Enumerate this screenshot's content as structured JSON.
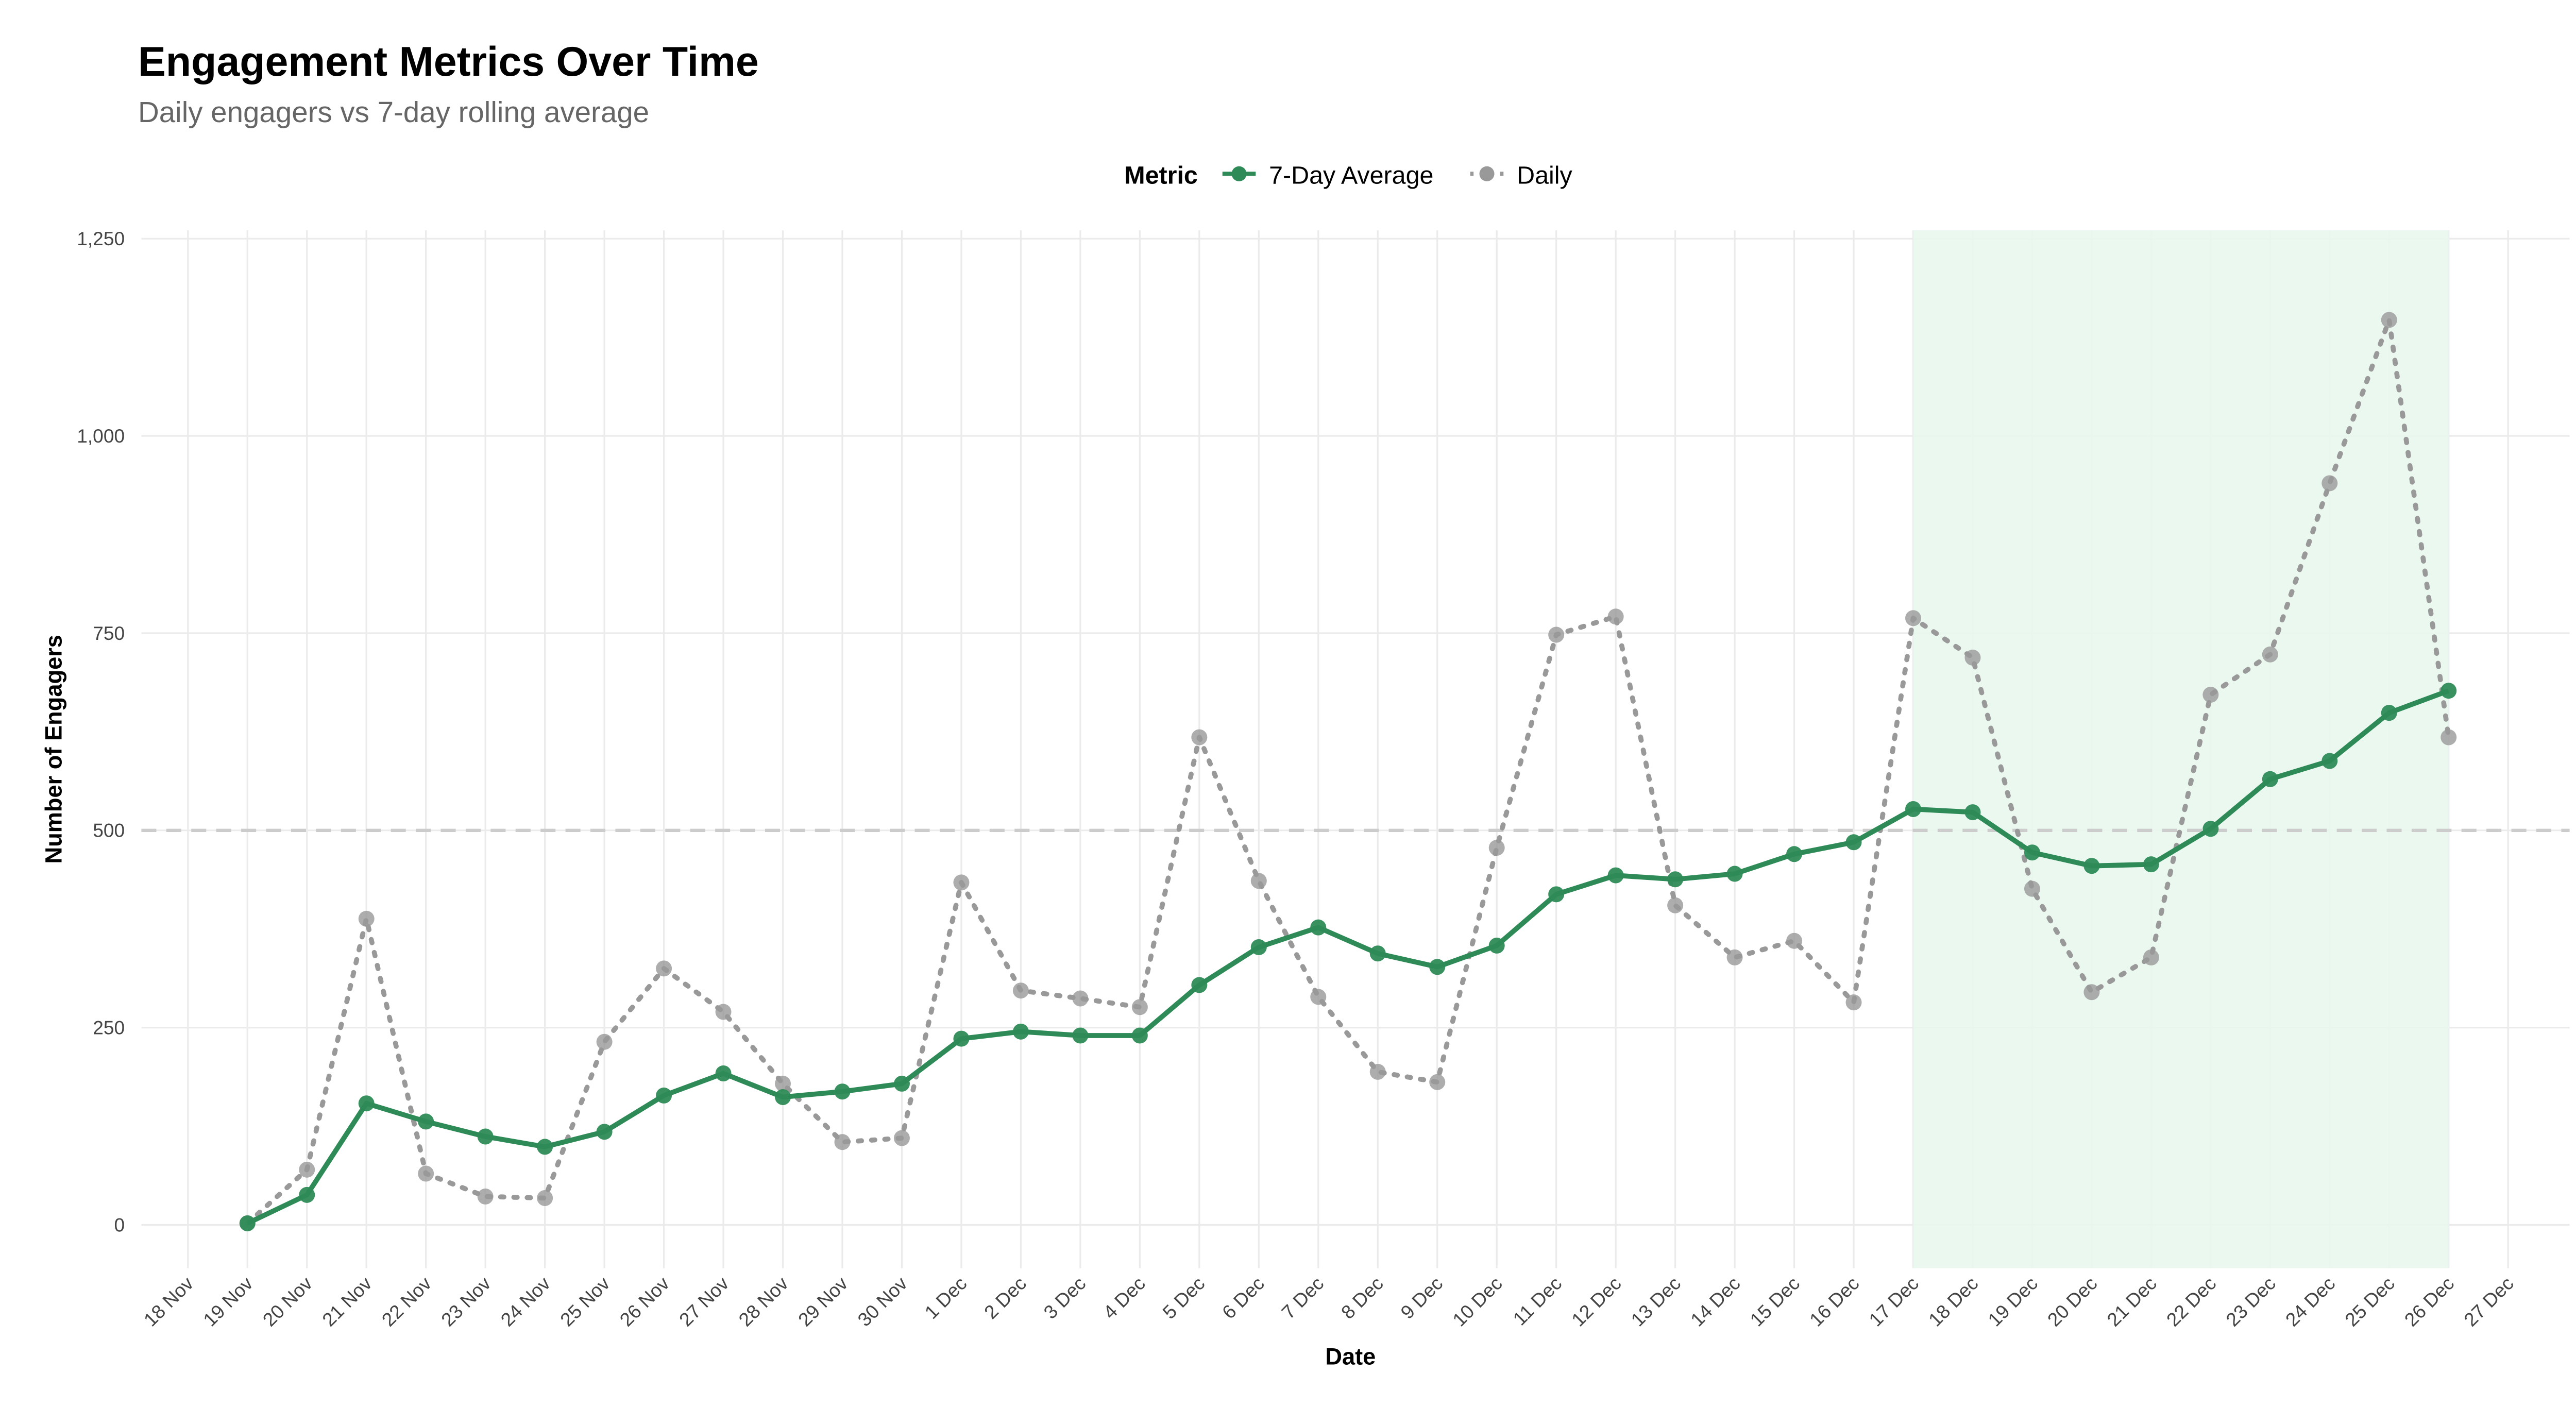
{
  "chart_data": {
    "type": "line",
    "title": "Engagement Metrics Over Time",
    "subtitle": "Daily engagers vs 7-day rolling average",
    "xlabel": "Date",
    "ylabel": "Number of Engagers",
    "legend": {
      "title": "Metric",
      "placement": "top",
      "entries": [
        "7-Day Average",
        "Daily"
      ]
    },
    "x_ticks": [
      "18 Nov",
      "19 Nov",
      "20 Nov",
      "21 Nov",
      "22 Nov",
      "23 Nov",
      "24 Nov",
      "25 Nov",
      "26 Nov",
      "27 Nov",
      "28 Nov",
      "29 Nov",
      "30 Nov",
      "1 Dec",
      "2 Dec",
      "3 Dec",
      "4 Dec",
      "5 Dec",
      "6 Dec",
      "7 Dec",
      "8 Dec",
      "9 Dec",
      "10 Dec",
      "11 Dec",
      "12 Dec",
      "13 Dec",
      "14 Dec",
      "15 Dec",
      "16 Dec",
      "17 Dec",
      "18 Dec",
      "19 Dec",
      "20 Dec",
      "21 Dec",
      "22 Dec",
      "23 Dec",
      "24 Dec",
      "25 Dec",
      "26 Dec",
      "27 Dec"
    ],
    "y_ticks": [
      0,
      250,
      500,
      750,
      1000,
      1250
    ],
    "y_tick_labels": [
      "0",
      "250",
      "500",
      "750",
      "1,000",
      "1,250"
    ],
    "ylim": [
      -55,
      1260
    ],
    "xlim_days": [
      -0.9,
      39.9
    ],
    "x_start_index": 1,
    "series": [
      {
        "name": "7-Day Average",
        "color": "#2e8b57",
        "style": "solid",
        "values": [
          2,
          38,
          154,
          131,
          112,
          99,
          118,
          164,
          192,
          162,
          169,
          179,
          236,
          245,
          240,
          240,
          304,
          352,
          377,
          344,
          327,
          354,
          419,
          443,
          438,
          445,
          470,
          485,
          527,
          523,
          472,
          455,
          457,
          502,
          565,
          588,
          649,
          677
        ]
      },
      {
        "name": "Daily",
        "color": "#999999",
        "style": "dotted",
        "values": [
          2,
          70,
          388,
          65,
          36,
          34,
          232,
          325,
          270,
          179,
          105,
          110,
          434,
          297,
          287,
          276,
          618,
          436,
          289,
          194,
          181,
          478,
          748,
          771,
          405,
          339,
          360,
          282,
          769,
          719,
          426,
          295,
          339,
          672,
          723,
          940,
          1147,
          618
        ]
      }
    ],
    "reference_line": {
      "y": 500,
      "style": "dashed",
      "color": "#cccccc"
    },
    "highlight_range": {
      "from": "17 Dec",
      "to": "26 Dec",
      "from_index": 29,
      "to_index": 38,
      "color": "#e8f7ee"
    }
  }
}
